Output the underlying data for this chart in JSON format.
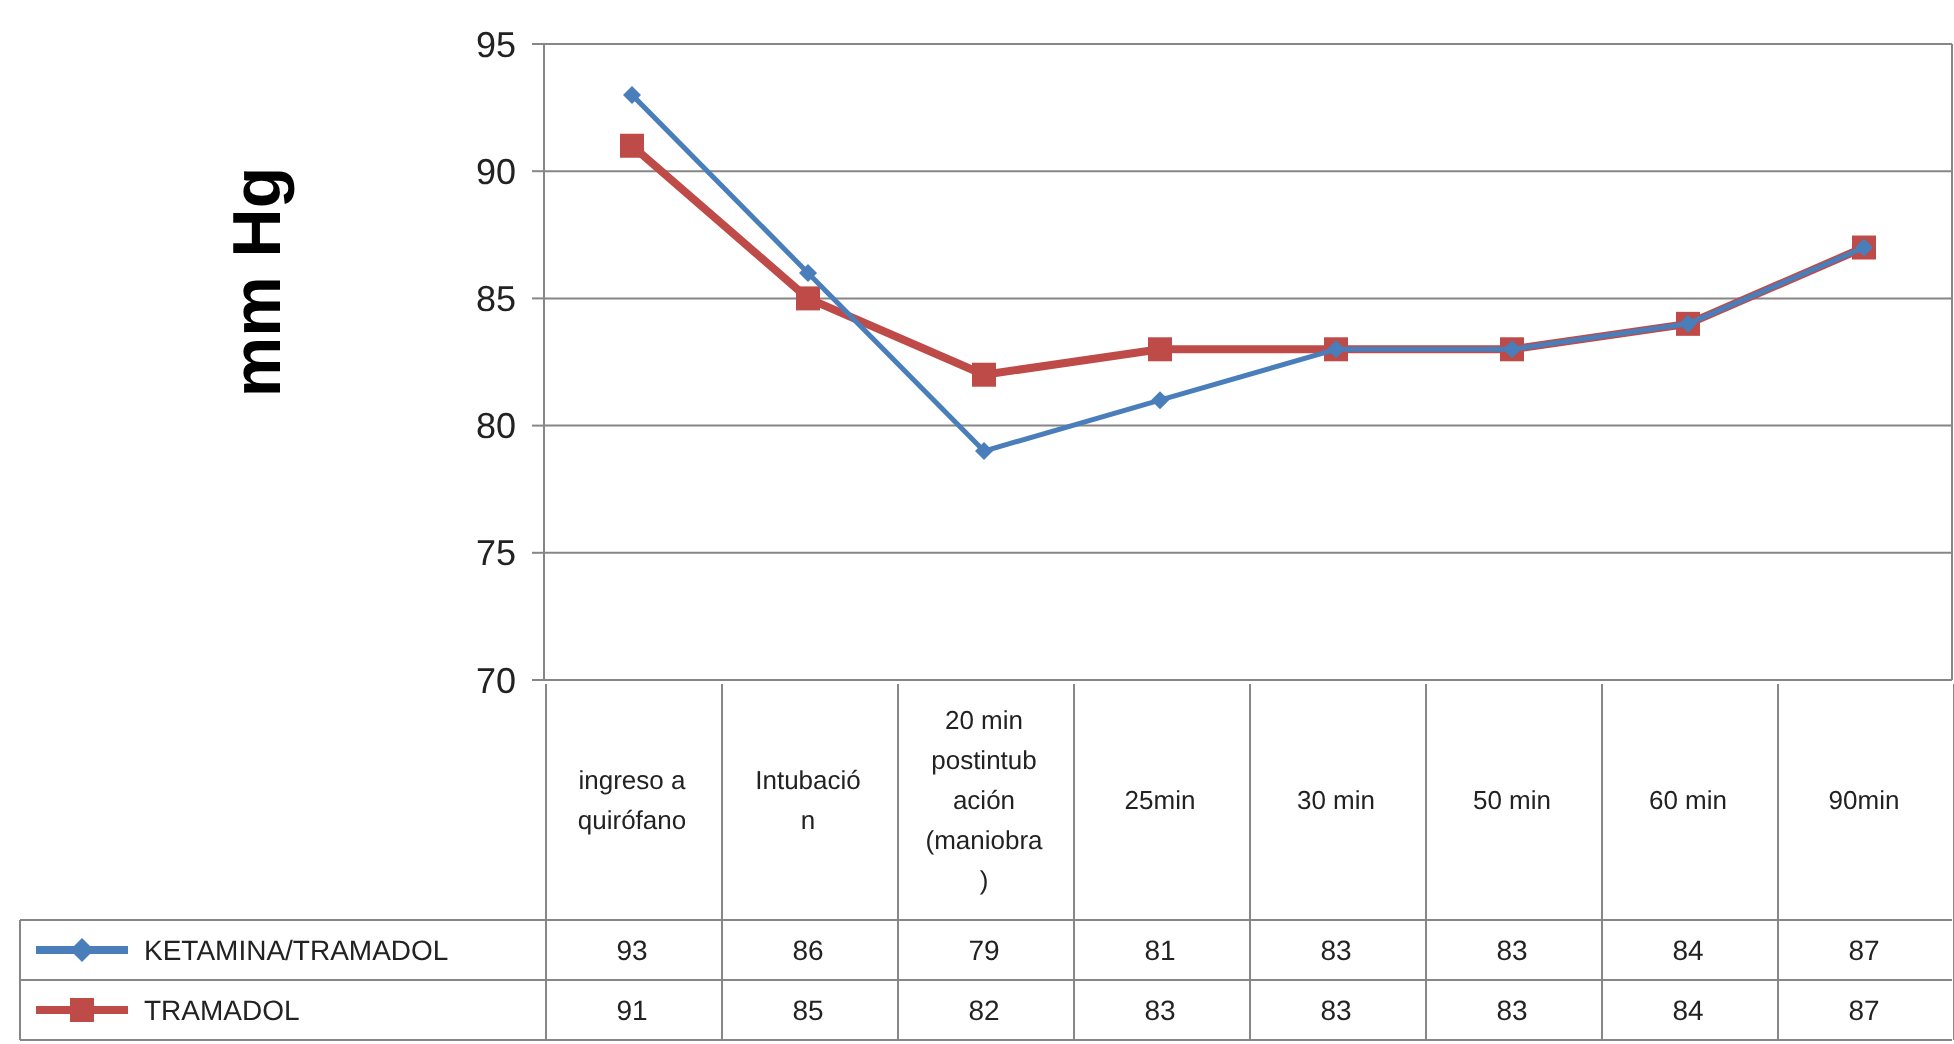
{
  "chart_data": {
    "type": "line",
    "ylabel": "mm Hg",
    "categories": [
      "ingreso a quirófano",
      "Intubación",
      "20 min postintubación (maniobra)",
      "25min",
      "30 min",
      "50 min",
      "60 min",
      "90min"
    ],
    "series": [
      {
        "name": "KETAMINA/TRAMADOL",
        "color": "#4a7ebb",
        "marker": "diamond",
        "values": [
          93,
          86,
          79,
          81,
          83,
          83,
          84,
          87
        ]
      },
      {
        "name": "TRAMADOL",
        "color": "#be4b48",
        "marker": "square",
        "values": [
          91,
          85,
          82,
          83,
          83,
          83,
          84,
          87
        ]
      }
    ],
    "ylim": [
      70,
      95
    ],
    "yticks": [
      70,
      75,
      80,
      85,
      90,
      95
    ],
    "grid": "y",
    "legend": "bottom",
    "data_labels": true
  }
}
